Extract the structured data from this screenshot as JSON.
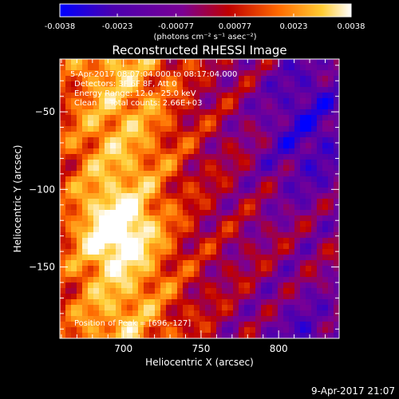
{
  "colorbar": {
    "ticks": [
      -0.0038,
      -0.0023,
      -0.00077,
      0.00077,
      0.0023,
      0.0038
    ],
    "tick_labels": [
      "-0.0038",
      "-0.0023",
      "-0.00077",
      "0.00077",
      "0.0023",
      "0.0038"
    ],
    "unit_label": "(photons cm⁻² s⁻¹ asec⁻²)",
    "range": [
      -0.0038,
      0.0038
    ]
  },
  "chart_data": {
    "type": "heatmap",
    "title": "Reconstructed RHESSI Image",
    "xlabel": "Heliocentric X (arcsec)",
    "ylabel": "Heliocentric Y (arcsec)",
    "xlim": [
      659,
      839
    ],
    "ylim": [
      -196,
      -16
    ],
    "x_ticks": [
      700,
      750,
      800
    ],
    "y_ticks": [
      -50,
      -100,
      -150
    ],
    "x_tick_labels": [
      "700",
      "750",
      "800"
    ],
    "y_tick_labels": [
      "−50",
      "−100",
      "−150"
    ],
    "peak": [
      696,
      -127
    ],
    "annotations": [
      "5-Apr-2017 08:07:04.000 to 08:17:04.000",
      "Detectors: 3F 6F 8F, Att 0",
      "Energy Range: 12.0 - 25.0 keV",
      "Clean     Total counts: 2.66E+03",
      "Position of Peak = [696,-127]"
    ],
    "colormap_colors": [
      "#0000ff",
      "#4b00b0",
      "#7a0094",
      "#c00000",
      "#ff6a00",
      "#ffcc33",
      "#ffffff"
    ]
  },
  "footer": {
    "timestamp": "9-Apr-2017 21:07"
  }
}
